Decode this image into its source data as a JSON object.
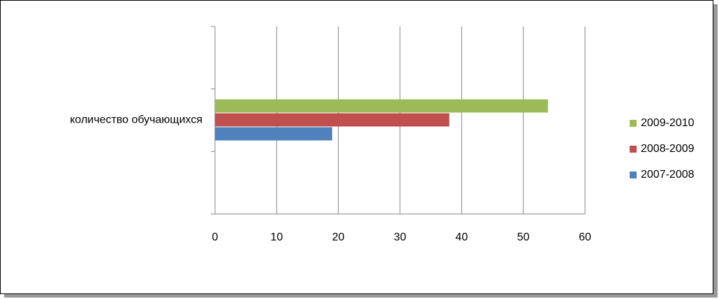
{
  "chart_data": {
    "type": "bar",
    "orientation": "horizontal",
    "categories": [
      null,
      "количество обучающихся",
      null
    ],
    "series": [
      {
        "name": "2007-2008",
        "color": "#4f81bd",
        "values": [
          null,
          19,
          null
        ]
      },
      {
        "name": "2008-2009",
        "color": "#c0504d",
        "values": [
          null,
          38,
          null
        ]
      },
      {
        "name": "2009-2010",
        "color": "#9bbb59",
        "values": [
          null,
          54,
          null
        ]
      }
    ],
    "xlim": [
      0,
      60
    ],
    "xticks": [
      0,
      10,
      20,
      30,
      40,
      50,
      60
    ],
    "grid": true,
    "legend": "right"
  }
}
